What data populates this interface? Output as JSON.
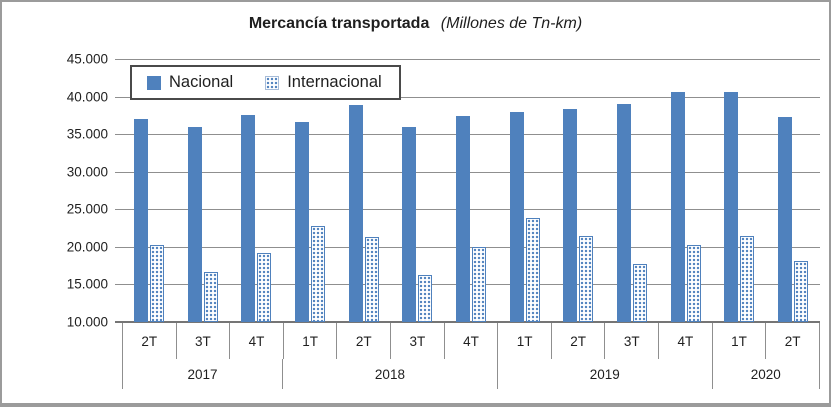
{
  "chart_data": {
    "type": "bar",
    "title": "Mercancía transportada",
    "subtitle": "(Millones de Tn-km)",
    "legend_position": "top-left-inside",
    "grid": true,
    "ylim": [
      10000,
      45000
    ],
    "ytick_step": 5000,
    "ytick_labels": [
      "45.000",
      "40.000",
      "35.000",
      "30.000",
      "25.000",
      "20.000",
      "15.000",
      "10.000"
    ],
    "categories": [
      "2T",
      "3T",
      "4T",
      "1T",
      "2T",
      "3T",
      "4T",
      "1T",
      "2T",
      "3T",
      "4T",
      "1T",
      "2T"
    ],
    "year_groups": [
      {
        "label": "2017",
        "count": 3
      },
      {
        "label": "2018",
        "count": 4
      },
      {
        "label": "2019",
        "count": 4
      },
      {
        "label": "2020",
        "count": 2
      }
    ],
    "series": [
      {
        "name": "Nacional",
        "style": "solid",
        "values": [
          37000,
          35900,
          37500,
          36600,
          38900,
          36000,
          37400,
          37900,
          38400,
          39000,
          40600,
          40600,
          37300
        ]
      },
      {
        "name": "Internacional",
        "style": "dotted-pattern",
        "values": [
          20300,
          16600,
          19200,
          22800,
          21300,
          16200,
          20000,
          23900,
          21400,
          17700,
          20200,
          21500,
          18100
        ]
      }
    ],
    "colors": {
      "bar_blue": "#4F81BD",
      "gridline": "#8f8f8f",
      "legend_border": "#4a4a4a",
      "text": "#1f1f1f"
    }
  }
}
